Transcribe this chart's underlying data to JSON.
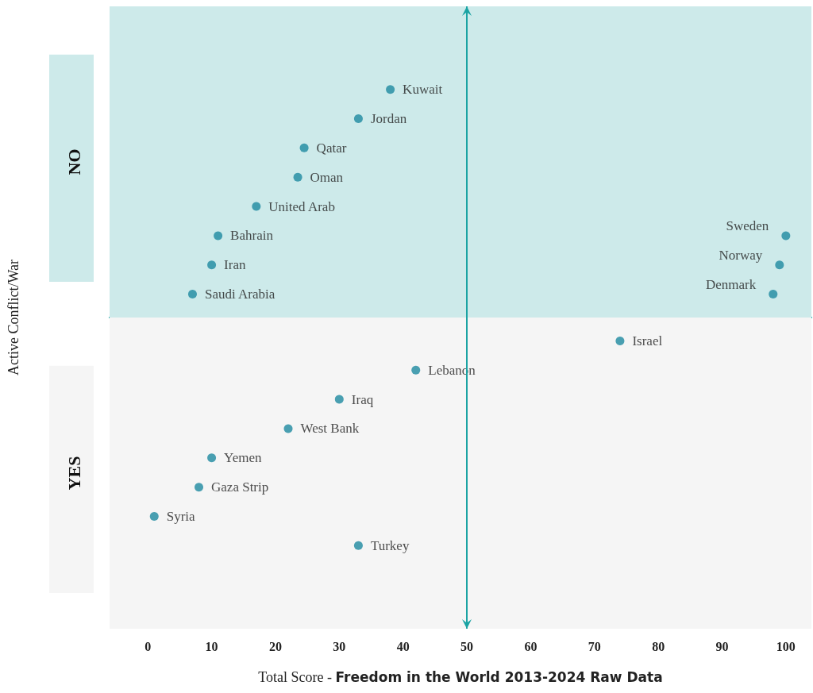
{
  "chart_data": {
    "type": "scatter",
    "orientation": "horizontal",
    "xlabel": "Total Score - Freedom in the World 2013-2024 Raw Data",
    "ylabel": "Active Conflict/War",
    "categories": [
      "NO",
      "YES"
    ],
    "xlim": [
      -6,
      104
    ],
    "xticks": [
      0,
      10,
      20,
      30,
      40,
      50,
      60,
      70,
      80,
      90,
      100
    ],
    "legend": false,
    "marker": "circle",
    "series": [
      {
        "name": "Denmark",
        "color": "#1e8aa0",
        "values": [
          98,
          null
        ]
      },
      {
        "name": "Norway",
        "color": "#1e8aa0",
        "values": [
          99,
          null
        ]
      },
      {
        "name": "Sweden",
        "color": "#1e8aa0",
        "values": [
          100,
          null
        ]
      },
      {
        "name": "Saudi Arabia",
        "color": "#1e8aa0",
        "values": [
          7,
          null
        ]
      },
      {
        "name": "Iran",
        "color": "#1e8aa0",
        "values": [
          10,
          null
        ]
      },
      {
        "name": "Bahrain",
        "color": "#1e8aa0",
        "values": [
          11,
          null
        ]
      },
      {
        "name": "United Arab",
        "color": "#1e8aa0",
        "values": [
          17,
          null
        ]
      },
      {
        "name": "Oman",
        "color": "#1e8aa0",
        "values": [
          23.5,
          null
        ]
      },
      {
        "name": "Qatar",
        "color": "#1e8aa0",
        "values": [
          24.5,
          null
        ]
      },
      {
        "name": "Jordan",
        "color": "#1e8aa0",
        "values": [
          33,
          null
        ]
      },
      {
        "name": "Kuwait",
        "color": "#1e8aa0",
        "values": [
          38,
          null
        ]
      },
      {
        "name": "Israel",
        "color": "#1e8aa0",
        "values": [
          null,
          74
        ]
      },
      {
        "name": "Lebanon",
        "color": "#1e8aa0",
        "values": [
          null,
          42
        ]
      },
      {
        "name": "Iraq",
        "color": "#1e8aa0",
        "values": [
          null,
          30
        ]
      },
      {
        "name": "West Bank",
        "color": "#1e8aa0",
        "values": [
          null,
          22
        ]
      },
      {
        "name": "Yemen",
        "color": "#1e8aa0",
        "values": [
          null,
          10
        ]
      },
      {
        "name": "Gaza Strip",
        "color": "#1e8aa0",
        "values": [
          null,
          8
        ]
      },
      {
        "name": "Syria",
        "color": "#1e8aa0",
        "values": [
          null,
          1
        ]
      },
      {
        "name": "Turkey",
        "color": "#1e8aa0",
        "values": [
          null,
          33
        ]
      }
    ],
    "ref_lines": [
      {
        "axis": "x",
        "value": 50,
        "color": "#1aa3a3"
      }
    ],
    "bands": [
      {
        "axis": "y",
        "from": "NO",
        "to": "NO",
        "color": "#cdeaea"
      },
      {
        "axis": "y",
        "from": "YES",
        "to": "YES",
        "color": "#f5f5f5"
      }
    ]
  }
}
